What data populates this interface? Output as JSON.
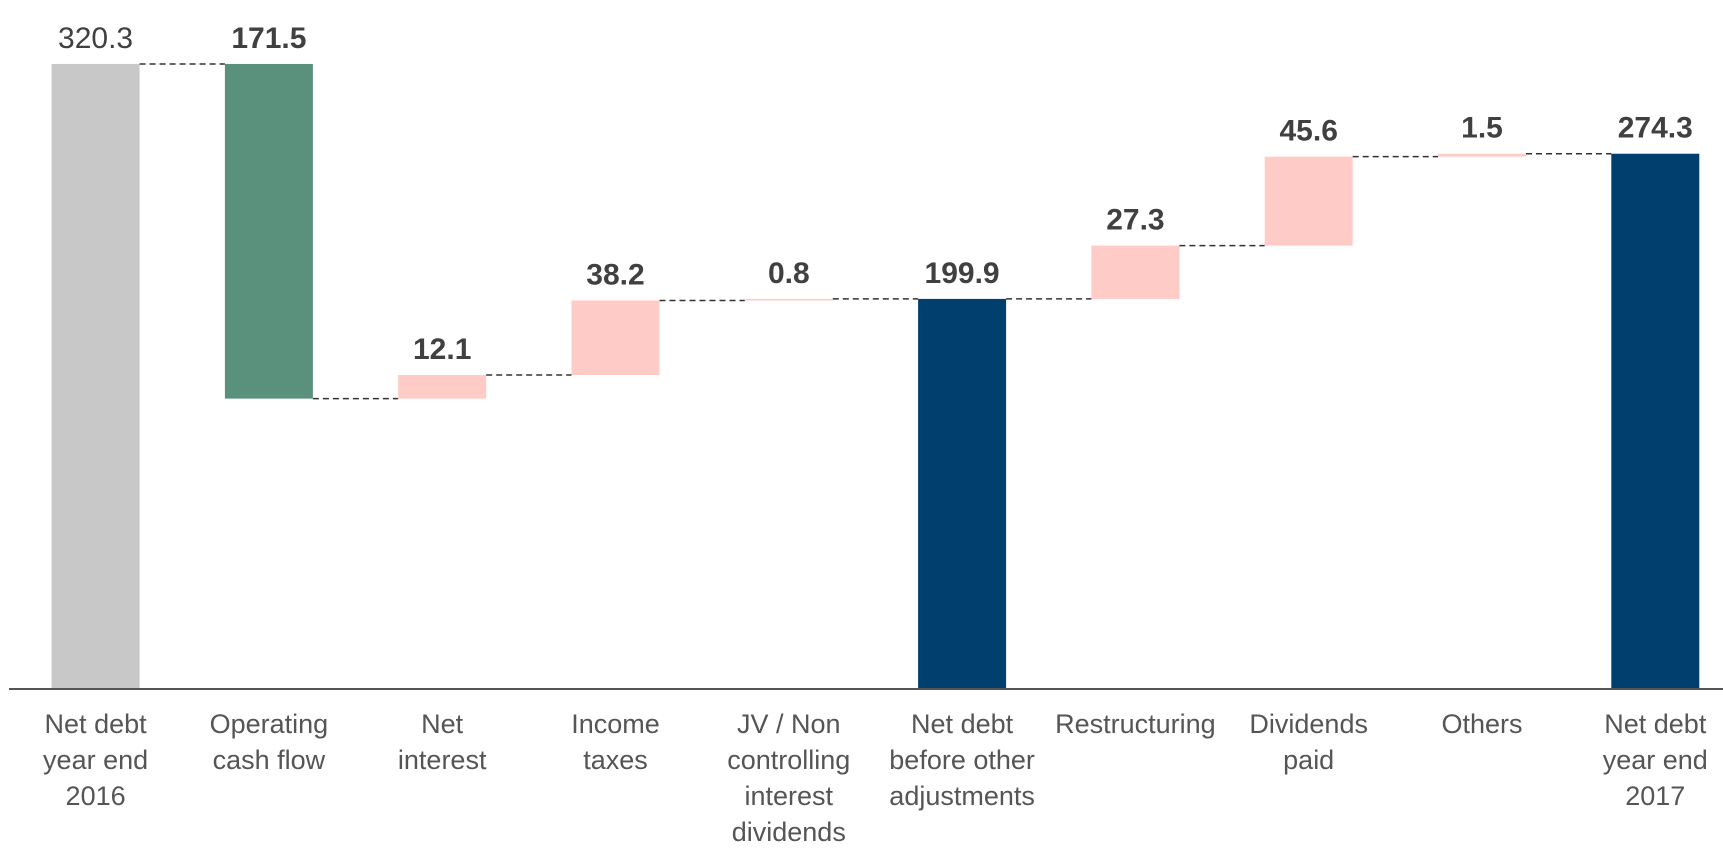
{
  "chart_data": {
    "type": "waterfall",
    "categories": [
      "Net debt\nyear end\n2016",
      "Operating\ncash flow",
      "Net\ninterest",
      "Income\ntaxes",
      "JV / Non\ncontrolling\ninterest\ndividends",
      "Net debt\nbefore other\nadjustments",
      "Restructuring",
      "Dividends\npaid",
      "Others",
      "Net debt\nyear end\n2017"
    ],
    "values": [
      320.3,
      171.5,
      12.1,
      38.2,
      0.8,
      199.9,
      27.3,
      45.6,
      1.5,
      274.3
    ],
    "measures": [
      "total",
      "decrease",
      "increase",
      "increase",
      "increase",
      "total",
      "increase",
      "increase",
      "increase",
      "total"
    ],
    "colors": [
      "#c8c8c8",
      "#5a917c",
      "#ffcbc6",
      "#ffcbc6",
      "#ffcbc6",
      "#003f6e",
      "#ffcbc6",
      "#ffcbc6",
      "#ffcbc6",
      "#003f6e"
    ],
    "label_bold": [
      false,
      true,
      true,
      true,
      true,
      true,
      true,
      true,
      true,
      true
    ],
    "ylim": [
      0,
      350
    ],
    "grid": false
  }
}
